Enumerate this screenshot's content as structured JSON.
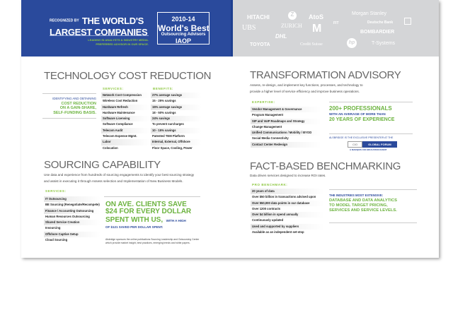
{
  "banner": {
    "recognized": "RECOGNIZED BY",
    "line1": "THE WORLD'S",
    "line2": "LARGEST COMPANIES",
    "tagline1": "LEADING IN ANALYSTS & INDUSTRY MEDIA.",
    "tagline2": "PREFERRED ADVISOR IN OUR SPACE.",
    "award_years": "2010-14",
    "award_title": "World's Best",
    "award_sub": "Outsourcing Advisors",
    "award_org": "IAOP"
  },
  "logos": [
    "HITACHI",
    "Z",
    "AtoS",
    "Morgan Stanley",
    "UBS",
    "ZURICH",
    "M",
    "FIT",
    "Deutsche Bank",
    "DHL",
    "BOMBARDIER",
    "TOYOTA",
    "Credit Suisse",
    "hp",
    "T-Systems"
  ],
  "tech": {
    "title": "TECHNOLOGY COST REDUCTION",
    "callout1": "IDENTIFYING AND OBTAINING",
    "callout2": "COST REDUCTION",
    "callout3": "ON A GAIN-SHARE,",
    "callout4": "SELF-FUNDING BASIS.",
    "services_label": "SERVICES:",
    "benefits_label": "BENEFITS:",
    "services": [
      "Network Cost Compression",
      "Wireless Cost Reduction",
      "Hardware Refresh",
      "Hardware Maintenance",
      "Software Licensing",
      "Software Compliance",
      "Telecom Audit",
      "Telecom Expense Mgmt.",
      "Labor",
      "Colocation"
    ],
    "benefits": [
      "27% average savings",
      "15 - 25% savings",
      "15% average savings",
      "18 - 50% savings",
      "24% savings",
      "To prevent surcharges",
      "10 - 15% savings",
      "Patented TEM Platform",
      "Internal, External, Offshore",
      "Floor Space, Cooling, Power"
    ]
  },
  "sourcing": {
    "title": "SOURCING CAPABILITY",
    "desc1": "Use data and experience from hundreds of sourcing engagements to identify your best sourcing strategy",
    "desc2": "and assist in executing it through  Assess selection and Implementation of New Business Models.",
    "services_label": "SERVICES:",
    "services": [
      "IT Outsourcing",
      "BE Sourcing (Renegotiate/Recompete)",
      "Finance / Accounting Outsourcing",
      "Human Resources Outsourcing",
      "Shared Service Creation",
      "Insourcing",
      "Offshore Captive Setup",
      "Cloud Sourcing"
    ],
    "callout1": "ON AVE. CLIENTS SAVE",
    "callout2": "$24 FOR EVERY DOLLAR",
    "callout3": "SPENT WITH US,",
    "callout4": "WITH A HIGH",
    "callout5": "OF $121 SAVED PER DOLLAR SPENT.",
    "note1": "Alsbridge sponsors the online publications Sourcing Leadership and Outsourcing Center",
    "note2": "which provide market insight, best practices, emerging trends and white papers."
  },
  "transform": {
    "title": "TRANSFORMATION ADVISORY",
    "desc1": "Assess, re-design, and implement key functions, processes, and technology to",
    "desc2": "provide a higher level of service efficiency and improve business operations.",
    "expertise_label": "EXPERTISE:",
    "expertise": [
      "Vendor Management & Governance",
      "Program Management",
      "SIP and VoIP Roadmaps and Strategy",
      "Change Management",
      "Unified Communications / Mobility / BYOD",
      "Social Media Connectivity",
      "Contact Center Redesign"
    ],
    "callout1": "200+ PROFESSIONALS",
    "callout2": "WITH AN AVERAGE OF MORE THAN",
    "callout3": "20 YEARS OF EXPERIENCE",
    "presenter": "ALSBRIDGE IS THE EXCLUSIVE PRESENTER AT THE",
    "cio": "CIO",
    "forum": "GLOBAL FORUM",
    "event": "A MARQUIS CIO EDUCATION EVENT"
  },
  "fact": {
    "title": "FACT-BASED BENCHMARKING",
    "desc": "Data driven services designed to increase ROI rates.",
    "label": "PRO BENCHMARK:",
    "items": [
      "20 years of data",
      "Over $50 billion in transactions advised upon",
      "Over 550,000 data points in our database",
      "Over 1200 contracts",
      "Over $4 billion in spend annually",
      "Continuously updated",
      "Used and supported by suppliers",
      "Available as an independent set-stop"
    ],
    "callout1": "THE INDUSTRIES MOST EXTENSIVE:",
    "callout2": "DATABASE AND DATA ANALYTICS",
    "callout3": "TO MODEL TARGET PRICING,",
    "callout4": "SERVICES AND SERVICE LEVELS."
  }
}
